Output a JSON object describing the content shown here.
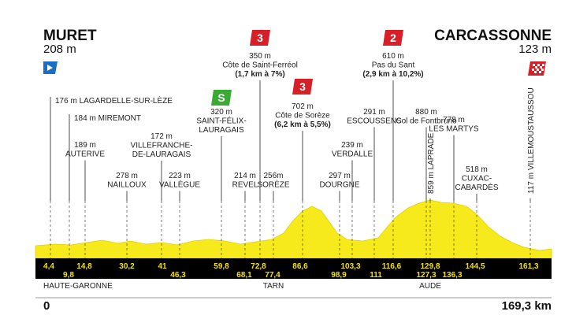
{
  "start": {
    "name": "MURET",
    "altitude": "208 m"
  },
  "finish": {
    "name": "CARCASSONNE",
    "altitude": "123 m"
  },
  "waypoints": [
    {
      "lines": [
        "176 m LAGARDELLE-SUR-LÈZE"
      ]
    },
    {
      "lines": [
        "184 m MIREMONT"
      ]
    },
    {
      "lines": [
        "189 m",
        "AUTERIVE"
      ]
    },
    {
      "lines": [
        "278 m",
        "NAILLOUX"
      ]
    },
    {
      "lines": [
        "172 m",
        "VILLEFRANCHE-",
        "DE-LAURAGAIS"
      ]
    },
    {
      "lines": [
        "223 m",
        "VALLÈGUE"
      ]
    },
    {
      "lines": [
        "320 m",
        "SAINT-FÉLIX-",
        "LAURAGAIS"
      ],
      "badge": "S"
    },
    {
      "lines": [
        "214 m",
        "REVEL"
      ]
    },
    {
      "lines": [
        "350 m",
        "Côte de Saint-Ferréol",
        "(1,7 km à 7%)"
      ],
      "badge": "3"
    },
    {
      "lines": [
        "256m",
        "SORÈZE"
      ]
    },
    {
      "lines": [
        "702 m",
        "Côte de Sorèze",
        "(6,2 km à 5,5%)"
      ],
      "badge": "3"
    },
    {
      "lines": [
        "297 m",
        "DOURGNE"
      ]
    },
    {
      "lines": [
        "239 m",
        "VERDALLE"
      ]
    },
    {
      "lines": [
        "291 m",
        "ESCOUSSENS"
      ]
    },
    {
      "lines": [
        "610 m",
        "Pas du Sant",
        "(2,9 km à 10,2%)"
      ],
      "badge": "2"
    },
    {
      "lines": [
        "859 m LAPRADE"
      ]
    },
    {
      "lines": [
        "880 m",
        "Col de Fontbruno"
      ]
    },
    {
      "lines": [
        "778 m",
        "LES MARTYS"
      ]
    },
    {
      "lines": [
        "518 m",
        "CUXAC-",
        "CABARDÈS"
      ]
    },
    {
      "lines": [
        "117 m VILLEMOUSTAUSSOU"
      ]
    }
  ],
  "distances": [
    "4,4",
    "9,8",
    "14,8",
    "30,2",
    "41",
    "46,3",
    "59,8",
    "68,1",
    "72,8",
    "77,4",
    "86,6",
    "98,9",
    "103,3",
    "111",
    "116,6",
    "127,3",
    "129,8",
    "136,3",
    "144,5",
    "161,3"
  ],
  "regions": [
    "HAUTE-GARONNE",
    "TARN",
    "AUDE"
  ],
  "start_km": "0",
  "end_km": "169,3 km"
}
